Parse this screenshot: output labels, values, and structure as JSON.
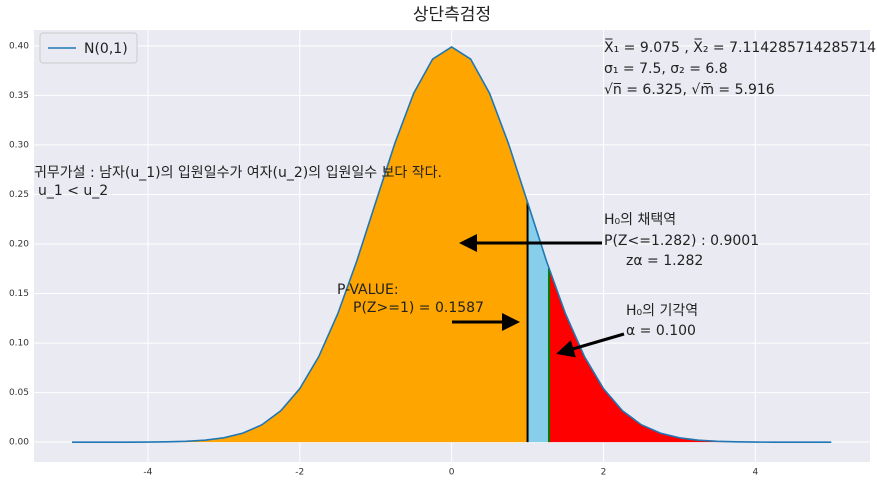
{
  "chart_data": {
    "type": "density",
    "title": "상단측검정",
    "series": [
      {
        "name": "N(0,1)",
        "color": "#1f77b4",
        "x": [
          -5,
          -4.75,
          -4.5,
          -4.25,
          -4,
          -3.75,
          -3.5,
          -3.25,
          -3,
          -2.75,
          -2.5,
          -2.25,
          -2,
          -1.75,
          -1.5,
          -1.25,
          -1,
          -0.75,
          -0.5,
          -0.25,
          0,
          0.25,
          0.5,
          0.75,
          1,
          1.25,
          1.5,
          1.75,
          2,
          2.25,
          2.5,
          2.75,
          3,
          3.25,
          3.5,
          3.75,
          4,
          4.25,
          4.5,
          4.75,
          5
        ],
        "values": [
          0,
          0,
          0,
          0,
          0.0001,
          0.0004,
          0.0009,
          0.002,
          0.0044,
          0.0091,
          0.0175,
          0.0317,
          0.054,
          0.0863,
          0.1295,
          0.1826,
          0.242,
          0.3011,
          0.3521,
          0.3867,
          0.3989,
          0.3867,
          0.3521,
          0.3011,
          0.242,
          0.1826,
          0.1295,
          0.0863,
          0.054,
          0.0317,
          0.0175,
          0.0091,
          0.0044,
          0.002,
          0.0009,
          0.0004,
          0.0001,
          0,
          0,
          0,
          0
        ]
      }
    ],
    "fills": [
      {
        "from": -5,
        "to": 1,
        "color": "orange"
      },
      {
        "from": 1,
        "to": 1.282,
        "color": "skyblue",
        "edge": "black"
      },
      {
        "from": 1.282,
        "to": 5,
        "color": "red",
        "edge": "green"
      }
    ],
    "xlim": [
      -5.5,
      5.51
    ],
    "ylim": [
      -0.02,
      0.416
    ],
    "xticks": [
      -4,
      -2,
      0,
      2,
      4
    ],
    "yticks": [
      {
        "value": 0,
        "label": "0.00"
      },
      {
        "value": 0.05,
        "label": "0.05"
      },
      {
        "value": 0.1,
        "label": "0.10"
      },
      {
        "value": 0.15,
        "label": "0.15"
      },
      {
        "value": 0.2,
        "label": "0.20"
      },
      {
        "value": 0.25,
        "label": "0.25"
      },
      {
        "value": 0.3,
        "label": "0.30"
      },
      {
        "value": 0.35,
        "label": "0.35"
      },
      {
        "value": 0.4,
        "label": "0.40"
      }
    ],
    "grid": true,
    "legend": "upper left",
    "annotations": [
      "X̅₁ = 9.075 , X̅₂ = 7.114285714285714",
      "σ₁ = 7.5, σ₂ = 6.8",
      "√n̅ = 6.325, √m̅ = 5.916",
      "귀무가설 : 남자(u_1)의 입원일수가 여자(u_2)의 입원일수 보다 작다.",
      "u_1 < u_2",
      "H₀의 채택역",
      "P(Z<=1.282) : 0.9001",
      "P-VALUE:",
      "P(Z>=1)   = 0.1587",
      "zα = 1.282",
      "H₀의 기각역",
      "α = 0.100"
    ]
  }
}
